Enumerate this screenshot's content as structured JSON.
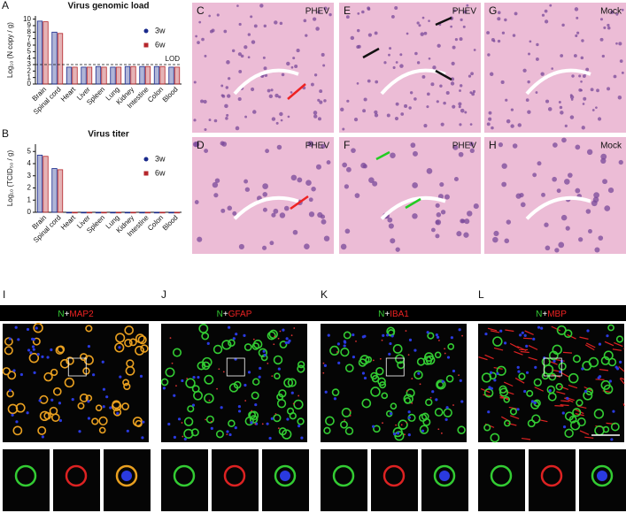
{
  "chart_data": [
    {
      "type": "bar",
      "panel": "A",
      "title": "Virus genomic load",
      "y_label": "Log₁₀ (N copy / g)",
      "categories": [
        "Brain",
        "Spinal cord",
        "Heart",
        "Liver",
        "Spleen",
        "Lung",
        "Kidney",
        "Intestine",
        "Colon",
        "Blood"
      ],
      "series": [
        {
          "name": "3w",
          "color": "#1a2a8c",
          "values": [
            9.7,
            8.0,
            2.6,
            2.6,
            2.7,
            2.6,
            2.7,
            2.7,
            2.7,
            2.6
          ]
        },
        {
          "name": "6w",
          "color": "#b5262b",
          "values": [
            9.6,
            7.8,
            2.6,
            2.6,
            2.6,
            2.6,
            2.7,
            2.7,
            2.7,
            2.6
          ]
        }
      ],
      "ylim": [
        0,
        10.5
      ],
      "yticks": [
        0,
        1,
        2,
        3,
        4,
        5,
        6,
        7,
        8,
        9,
        10
      ],
      "lod": {
        "label": "LOD",
        "value": 3
      }
    },
    {
      "type": "bar",
      "panel": "B",
      "title": "Virus titer",
      "y_label": "Log₁₀ (TCID₅₀ / g)",
      "categories": [
        "Brain",
        "Spinal cord",
        "Heart",
        "Liver",
        "Spleen",
        "Lung",
        "Kidney",
        "Intestine",
        "Colon",
        "Blood"
      ],
      "series": [
        {
          "name": "3w",
          "color": "#1a2a8c",
          "values": [
            4.7,
            3.6,
            0,
            0,
            0,
            0,
            0,
            0,
            0,
            0
          ]
        },
        {
          "name": "6w",
          "color": "#b5262b",
          "values": [
            4.6,
            3.5,
            0,
            0,
            0,
            0,
            0,
            0,
            0,
            0
          ]
        }
      ],
      "ylim": [
        0,
        5.6
      ],
      "yticks": [
        0,
        1,
        2,
        3,
        4,
        5
      ]
    }
  ],
  "histology": [
    {
      "panel": "C",
      "label": "PHEV"
    },
    {
      "panel": "E",
      "label": "PHEV"
    },
    {
      "panel": "G",
      "label": "Mock"
    },
    {
      "panel": "D",
      "label": "PHEV"
    },
    {
      "panel": "F",
      "label": "PHEV"
    },
    {
      "panel": "H",
      "label": "Mock"
    }
  ],
  "fluorescence": [
    {
      "panel": "I",
      "n": "N",
      "plus": "+",
      "marker": "MAP2"
    },
    {
      "panel": "J",
      "n": "N",
      "plus": "+",
      "marker": "GFAP"
    },
    {
      "panel": "K",
      "n": "N",
      "plus": "+",
      "marker": "IBA1"
    },
    {
      "panel": "L",
      "n": "N",
      "plus": "+",
      "marker": "MBP"
    }
  ]
}
